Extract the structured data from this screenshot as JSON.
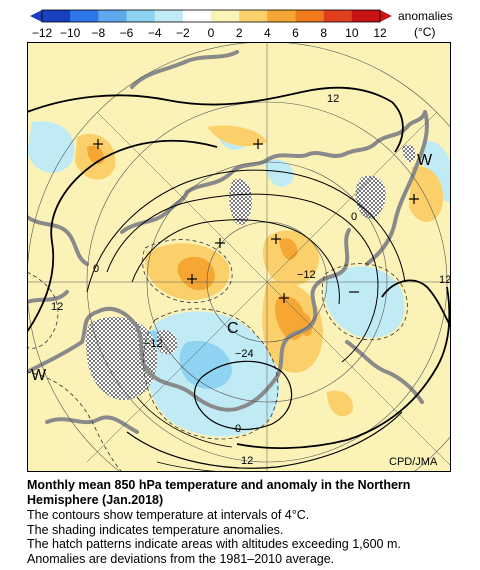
{
  "legend": {
    "label": "anomalies",
    "unit": "(°C)",
    "ticks": [
      "−12",
      "−10",
      "−8",
      "−6",
      "−4",
      "−2",
      "0",
      "2",
      "4",
      "6",
      "8",
      "10",
      "12"
    ],
    "colors": [
      "#1a3fc0",
      "#2d78e8",
      "#5fa8f0",
      "#8fd3f3",
      "#c0ebf5",
      "#fbf2b8",
      "#fbd06a",
      "#f5a633",
      "#ee7a1c",
      "#e04020",
      "#c81414"
    ]
  },
  "map": {
    "contour_labels": [
      "12",
      "0",
      "12",
      "−12",
      "−24",
      "0",
      "12",
      "−12",
      "0",
      "12"
    ],
    "center_labels": [
      "W",
      "W",
      "C"
    ],
    "credit": "CPD/JMA"
  },
  "caption": {
    "title_line1": "Monthly mean 850 hPa temperature and anomaly in the Northern",
    "title_line2": "Hemisphere (Jan.2018)",
    "lines": [
      "The contours show temperature at intervals of 4°C.",
      "The shading indicates temperature anomalies.",
      "The hatch patterns indicate areas with altitudes exceeding 1,600 m.",
      "Anomalies are deviations from the 1981–2010 average."
    ]
  }
}
